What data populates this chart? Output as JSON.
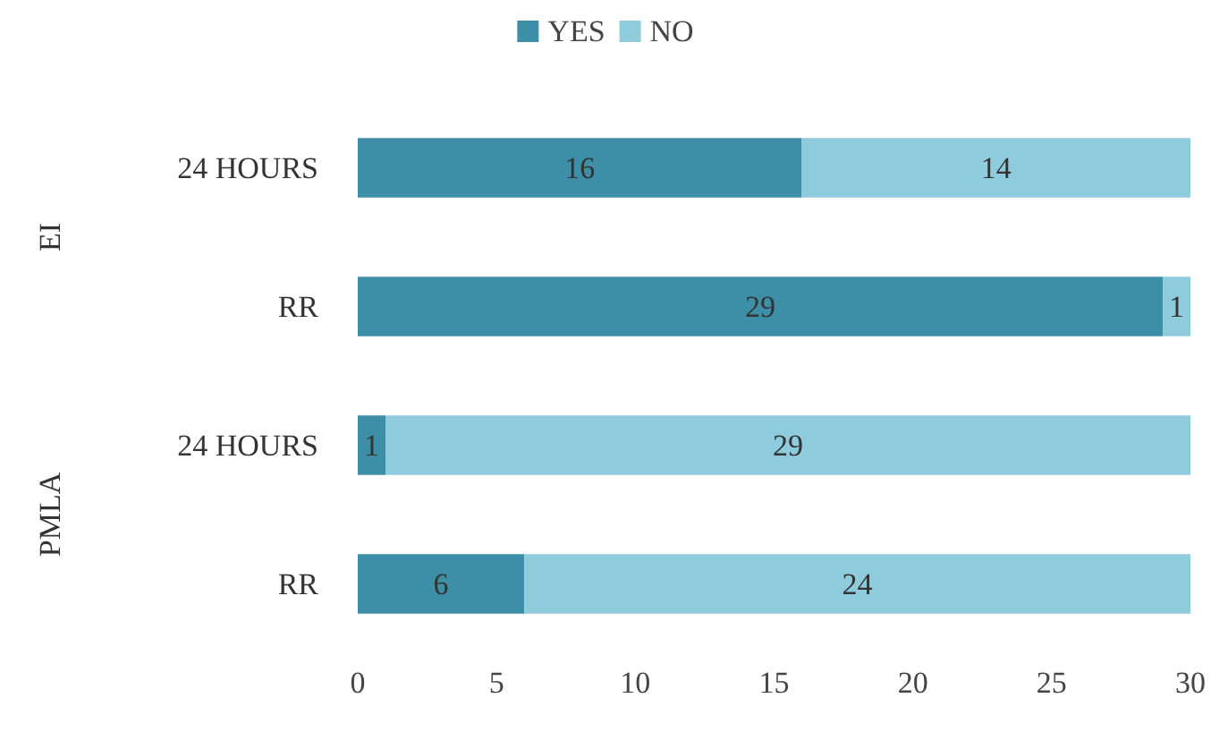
{
  "chart_data": {
    "type": "bar",
    "orientation": "horizontal",
    "stacked": true,
    "categories": [
      "24 HOURS",
      "RR",
      "24 HOURS",
      "RR"
    ],
    "series": [
      {
        "name": "YES",
        "color": "#3c8fa7",
        "values": [
          16,
          29,
          1,
          6
        ]
      },
      {
        "name": "NO",
        "color": "#8ecbdc",
        "values": [
          14,
          1,
          29,
          24
        ]
      }
    ],
    "xlim": [
      0,
      30
    ],
    "xticks": [
      0,
      5,
      10,
      15,
      20,
      25,
      30
    ],
    "grid": false,
    "legend": "top",
    "data_labels": true,
    "annotations": [
      "EI",
      "PMLA"
    ]
  }
}
